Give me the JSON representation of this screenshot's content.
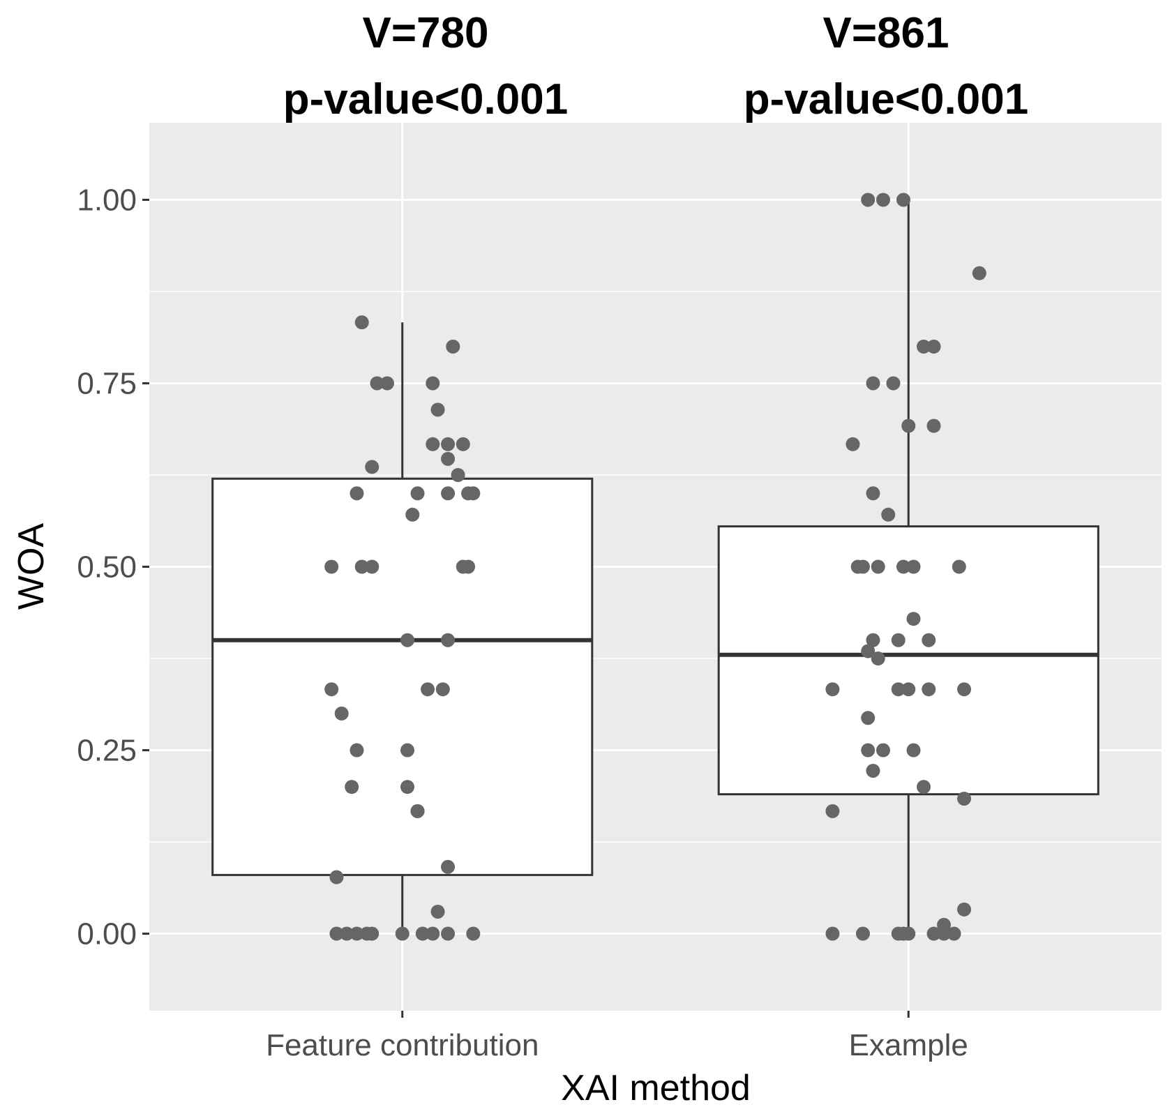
{
  "chart_data": {
    "type": "boxplot",
    "xlabel": "XAI method",
    "ylabel": "WOA",
    "ylim": [
      -0.105,
      1.105
    ],
    "y_ticks": [
      0.0,
      0.25,
      0.5,
      0.75,
      1.0
    ],
    "y_tick_labels": [
      "0.00",
      "0.25",
      "0.50",
      "0.75",
      "1.00"
    ],
    "grid": true,
    "categories": [
      "Feature contribution",
      "Example"
    ],
    "groups": [
      {
        "name": "Feature contribution",
        "annotation": [
          "V=780",
          "p-value<0.001"
        ],
        "box": {
          "lower_whisker": 0.0,
          "q1": 0.08,
          "median": 0.4,
          "q3": 0.62,
          "upper_whisker": 0.833
        },
        "points": [
          {
            "x": -0.08,
            "y": 0.833
          },
          {
            "x": 0.1,
            "y": 0.8
          },
          {
            "x": -0.05,
            "y": 0.75
          },
          {
            "x": -0.03,
            "y": 0.75
          },
          {
            "x": 0.06,
            "y": 0.75
          },
          {
            "x": 0.07,
            "y": 0.714
          },
          {
            "x": 0.06,
            "y": 0.667
          },
          {
            "x": 0.09,
            "y": 0.667
          },
          {
            "x": 0.12,
            "y": 0.667
          },
          {
            "x": 0.09,
            "y": 0.647
          },
          {
            "x": -0.06,
            "y": 0.636
          },
          {
            "x": 0.11,
            "y": 0.625
          },
          {
            "x": -0.09,
            "y": 0.6
          },
          {
            "x": 0.03,
            "y": 0.6
          },
          {
            "x": 0.09,
            "y": 0.6
          },
          {
            "x": 0.13,
            "y": 0.6
          },
          {
            "x": 0.14,
            "y": 0.6
          },
          {
            "x": 0.02,
            "y": 0.571
          },
          {
            "x": -0.14,
            "y": 0.5
          },
          {
            "x": -0.08,
            "y": 0.5
          },
          {
            "x": -0.06,
            "y": 0.5
          },
          {
            "x": 0.12,
            "y": 0.5
          },
          {
            "x": 0.13,
            "y": 0.5
          },
          {
            "x": 0.01,
            "y": 0.4
          },
          {
            "x": 0.09,
            "y": 0.4
          },
          {
            "x": -0.14,
            "y": 0.333
          },
          {
            "x": 0.05,
            "y": 0.333
          },
          {
            "x": 0.08,
            "y": 0.333
          },
          {
            "x": -0.12,
            "y": 0.3
          },
          {
            "x": -0.09,
            "y": 0.25
          },
          {
            "x": 0.01,
            "y": 0.25
          },
          {
            "x": -0.1,
            "y": 0.2
          },
          {
            "x": 0.01,
            "y": 0.2
          },
          {
            "x": 0.03,
            "y": 0.167
          },
          {
            "x": 0.03,
            "y": 0.167
          },
          {
            "x": 0.09,
            "y": 0.091
          },
          {
            "x": -0.13,
            "y": 0.077
          },
          {
            "x": 0.07,
            "y": 0.03
          },
          {
            "x": -0.13,
            "y": 0.0
          },
          {
            "x": -0.11,
            "y": 0.0
          },
          {
            "x": -0.09,
            "y": 0.0
          },
          {
            "x": -0.07,
            "y": 0.0
          },
          {
            "x": -0.06,
            "y": 0.0
          },
          {
            "x": 0.0,
            "y": 0.0
          },
          {
            "x": 0.04,
            "y": 0.0
          },
          {
            "x": 0.06,
            "y": 0.0
          },
          {
            "x": 0.09,
            "y": 0.0
          },
          {
            "x": 0.14,
            "y": 0.0
          }
        ]
      },
      {
        "name": "Example",
        "annotation": [
          "V=861",
          "p-value<0.001"
        ],
        "box": {
          "lower_whisker": 0.0,
          "q1": 0.19,
          "median": 0.38,
          "q3": 0.555,
          "upper_whisker": 1.0
        },
        "points": [
          {
            "x": -0.08,
            "y": 1.0
          },
          {
            "x": -0.05,
            "y": 1.0
          },
          {
            "x": -0.01,
            "y": 1.0
          },
          {
            "x": 0.14,
            "y": 0.9
          },
          {
            "x": 0.03,
            "y": 0.8
          },
          {
            "x": 0.05,
            "y": 0.8
          },
          {
            "x": -0.07,
            "y": 0.75
          },
          {
            "x": -0.03,
            "y": 0.75
          },
          {
            "x": 0.0,
            "y": 0.692
          },
          {
            "x": 0.05,
            "y": 0.692
          },
          {
            "x": -0.11,
            "y": 0.667
          },
          {
            "x": -0.07,
            "y": 0.6
          },
          {
            "x": -0.04,
            "y": 0.571
          },
          {
            "x": -0.1,
            "y": 0.5
          },
          {
            "x": -0.09,
            "y": 0.5
          },
          {
            "x": -0.06,
            "y": 0.5
          },
          {
            "x": -0.01,
            "y": 0.5
          },
          {
            "x": 0.01,
            "y": 0.5
          },
          {
            "x": 0.1,
            "y": 0.5
          },
          {
            "x": 0.01,
            "y": 0.429
          },
          {
            "x": -0.07,
            "y": 0.4
          },
          {
            "x": -0.02,
            "y": 0.4
          },
          {
            "x": 0.04,
            "y": 0.4
          },
          {
            "x": -0.08,
            "y": 0.385
          },
          {
            "x": -0.06,
            "y": 0.375
          },
          {
            "x": -0.15,
            "y": 0.333
          },
          {
            "x": -0.02,
            "y": 0.333
          },
          {
            "x": 0.0,
            "y": 0.333
          },
          {
            "x": 0.04,
            "y": 0.333
          },
          {
            "x": 0.11,
            "y": 0.333
          },
          {
            "x": -0.08,
            "y": 0.294
          },
          {
            "x": -0.08,
            "y": 0.25
          },
          {
            "x": -0.05,
            "y": 0.25
          },
          {
            "x": 0.01,
            "y": 0.25
          },
          {
            "x": -0.07,
            "y": 0.222
          },
          {
            "x": 0.03,
            "y": 0.2
          },
          {
            "x": 0.11,
            "y": 0.184
          },
          {
            "x": -0.15,
            "y": 0.167
          },
          {
            "x": 0.11,
            "y": 0.033
          },
          {
            "x": 0.07,
            "y": 0.012
          },
          {
            "x": -0.15,
            "y": 0.0
          },
          {
            "x": -0.09,
            "y": 0.0
          },
          {
            "x": -0.02,
            "y": 0.0
          },
          {
            "x": -0.01,
            "y": 0.0
          },
          {
            "x": 0.0,
            "y": 0.0
          },
          {
            "x": 0.05,
            "y": 0.0
          },
          {
            "x": 0.07,
            "y": 0.0
          },
          {
            "x": 0.09,
            "y": 0.0
          }
        ]
      }
    ]
  }
}
